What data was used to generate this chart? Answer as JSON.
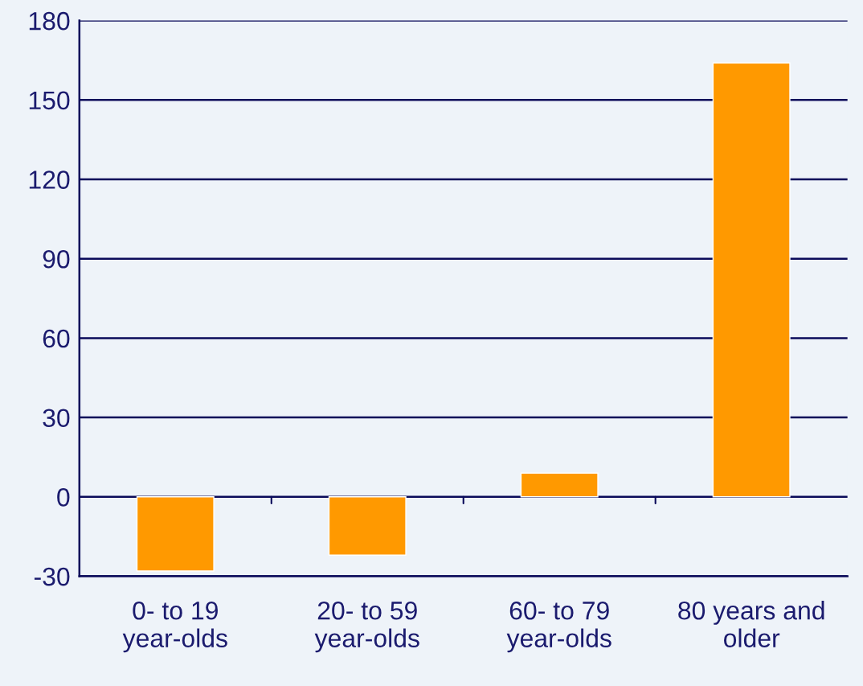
{
  "chart_data": {
    "type": "bar",
    "categories": [
      "0- to 19 year-olds",
      "20- to 59 year-olds",
      "60- to 79 year-olds",
      "80 years and older"
    ],
    "values": [
      -28,
      -22,
      9,
      164
    ],
    "color": "#ff9900",
    "ylim": [
      -30,
      180
    ],
    "yticks": [
      -30,
      0,
      30,
      60,
      90,
      120,
      150,
      180
    ],
    "grid": "y",
    "legend": false
  }
}
